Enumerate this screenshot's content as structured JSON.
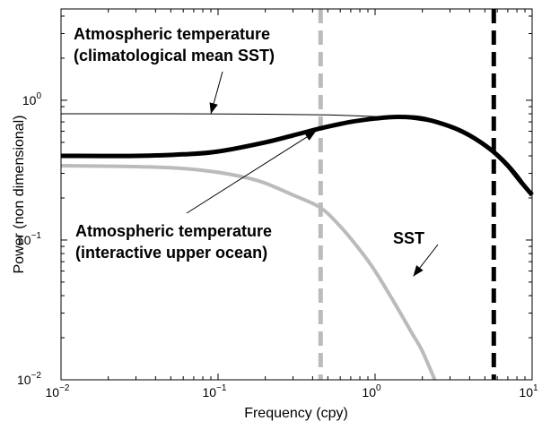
{
  "chart_data": {
    "type": "line",
    "xlabel": "Frequency (cpy)",
    "ylabel": "Power (non dimensional)",
    "xscale": "log",
    "yscale": "log",
    "xlim": [
      0.01,
      10
    ],
    "ylim": [
      0.01,
      4.5
    ],
    "grid": false,
    "x_ticks": [
      {
        "value": 0.01,
        "base": "10",
        "exp": "−2"
      },
      {
        "value": 0.1,
        "base": "10",
        "exp": "−1"
      },
      {
        "value": 1,
        "base": "10",
        "exp": "0"
      },
      {
        "value": 10,
        "base": "10",
        "exp": "1"
      }
    ],
    "y_ticks": [
      {
        "value": 0.01,
        "base": "10",
        "exp": "−2"
      },
      {
        "value": 0.1,
        "base": "10",
        "exp": "−1"
      },
      {
        "value": 1,
        "base": "10",
        "exp": "0"
      }
    ],
    "series": [
      {
        "style": "thin-black",
        "color": "#000000",
        "x": [
          0.01,
          0.05,
          0.2,
          0.5,
          1.0,
          1.5,
          2.5,
          4.0,
          6.0,
          8.0,
          10.0
        ],
        "y": [
          0.8,
          0.8,
          0.795,
          0.785,
          0.765,
          0.745,
          0.68,
          0.56,
          0.42,
          0.3,
          0.21
        ]
      },
      {
        "style": "thick-black",
        "color": "#000000",
        "x": [
          0.01,
          0.03,
          0.06,
          0.1,
          0.2,
          0.3,
          0.45,
          0.7,
          1.0,
          1.4,
          2.0,
          3.0,
          4.0,
          5.5,
          7.0,
          8.5,
          10.0
        ],
        "y": [
          0.4,
          0.4,
          0.41,
          0.43,
          0.5,
          0.56,
          0.63,
          0.7,
          0.74,
          0.76,
          0.74,
          0.65,
          0.56,
          0.44,
          0.34,
          0.26,
          0.21
        ]
      },
      {
        "style": "thick-gray",
        "color": "#bbbbbb",
        "x": [
          0.01,
          0.03,
          0.06,
          0.1,
          0.15,
          0.2,
          0.3,
          0.45,
          0.6,
          0.8,
          1.0,
          1.3,
          1.7,
          2.0,
          2.4
        ],
        "y": [
          0.34,
          0.335,
          0.325,
          0.305,
          0.28,
          0.255,
          0.21,
          0.17,
          0.125,
          0.085,
          0.06,
          0.037,
          0.022,
          0.016,
          0.01
        ]
      }
    ],
    "vlines": [
      {
        "x": 0.45,
        "color": "#bbbbbb"
      },
      {
        "x": 5.7,
        "color": "#000000"
      }
    ],
    "annotations": [
      {
        "lines": [
          "Atmospheric temperature",
          "(climatological mean SST)"
        ],
        "arrow_to": [
          0.09,
          0.8
        ]
      },
      {
        "lines": [
          "Atmospheric temperature",
          "(interactive upper ocean)"
        ],
        "arrow_to": [
          0.42,
          0.6
        ]
      },
      {
        "lines": [
          "SST"
        ],
        "arrow_to": [
          1.75,
          0.055
        ]
      }
    ]
  }
}
